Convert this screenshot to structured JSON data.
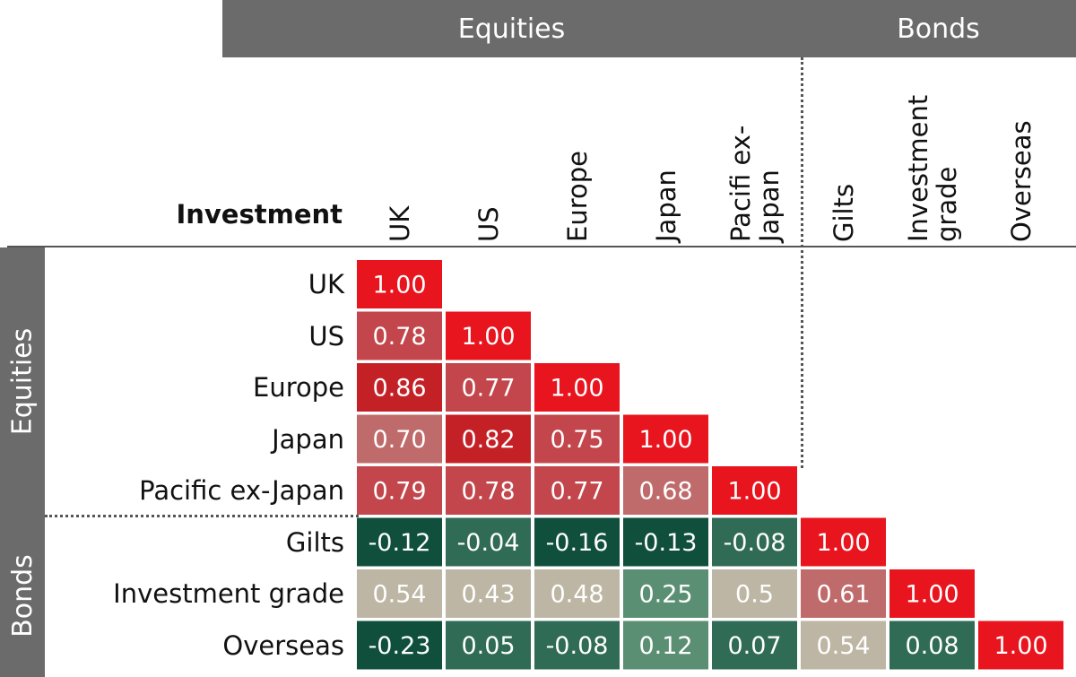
{
  "header": {
    "corner_label": "Investment",
    "group_top": [
      {
        "label": "Equities"
      },
      {
        "label": "Bonds"
      }
    ],
    "group_left": [
      {
        "label": "Equities"
      },
      {
        "label": "Bonds"
      }
    ]
  },
  "colors": {
    "diagonal": "#e8141e",
    "high_positive": "#c42127",
    "mid_positive": "#c06b6b",
    "neutral": "#bdb6a4",
    "low_positive": "#5b8f73",
    "negative": "#0f4f3c",
    "band": "#6b6b6b"
  },
  "chart_data": {
    "type": "heatmap",
    "rows": [
      "UK",
      "US",
      "Europe",
      "Japan",
      "Pacific ex-Japan",
      "Gilts",
      "Investment grade",
      "Overseas"
    ],
    "columns": [
      "UK",
      "US",
      "Europe",
      "Japan",
      "Pacifi ex-\nJapan",
      "Gilts",
      "Investment\ngrade",
      "Overseas"
    ],
    "values": [
      [
        "1.00"
      ],
      [
        "0.78",
        "1.00"
      ],
      [
        "0.86",
        "0.77",
        "1.00"
      ],
      [
        "0.70",
        "0.82",
        "0.75",
        "1.00"
      ],
      [
        "0.79",
        "0.78",
        "0.77",
        "0.68",
        "1.00"
      ],
      [
        "-0.12",
        "-0.04",
        "-0.16",
        "-0.13",
        "-0.08",
        "1.00"
      ],
      [
        "0.54",
        "0.43",
        "0.48",
        "0.25",
        "0.5",
        "0.61",
        "1.00"
      ],
      [
        "-0.23",
        "0.05",
        "-0.08",
        "0.12",
        "0.07",
        "0.54",
        "0.08",
        "1.00"
      ]
    ],
    "groups": [
      {
        "name": "Equities",
        "members": [
          "UK",
          "US",
          "Europe",
          "Japan",
          "Pacific ex-Japan"
        ]
      },
      {
        "name": "Bonds",
        "members": [
          "Gilts",
          "Investment grade",
          "Overseas"
        ]
      }
    ],
    "title": "",
    "xlabel": "",
    "ylabel": "Investment"
  }
}
